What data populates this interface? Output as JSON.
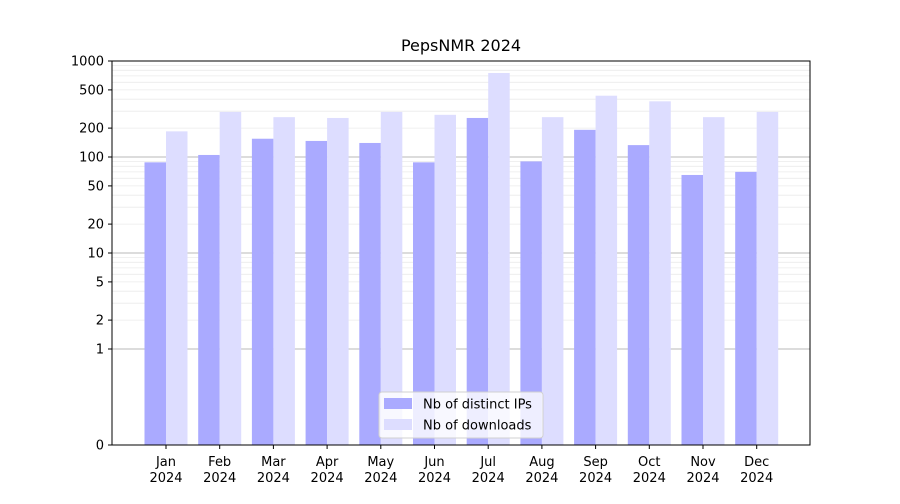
{
  "chart_data": {
    "type": "bar",
    "title": "PepsNMR 2024",
    "xlabel": "",
    "ylabel": "",
    "y_scale": "symlog",
    "ylim": [
      0,
      1000
    ],
    "y_ticks": [
      0,
      1,
      2,
      5,
      10,
      20,
      50,
      100,
      200,
      500,
      1000
    ],
    "y_tick_labels": [
      "0",
      "1",
      "2",
      "5",
      "10",
      "20",
      "50",
      "100",
      "200",
      "500",
      "1000"
    ],
    "grid": true,
    "legend_position": "bottom-center",
    "categories": [
      [
        "Jan",
        "2024"
      ],
      [
        "Feb",
        "2024"
      ],
      [
        "Mar",
        "2024"
      ],
      [
        "Apr",
        "2024"
      ],
      [
        "May",
        "2024"
      ],
      [
        "Jun",
        "2024"
      ],
      [
        "Jul",
        "2024"
      ],
      [
        "Aug",
        "2024"
      ],
      [
        "Sep",
        "2024"
      ],
      [
        "Oct",
        "2024"
      ],
      [
        "Nov",
        "2024"
      ],
      [
        "Dec",
        "2024"
      ]
    ],
    "series": [
      {
        "name": "Nb of distinct IPs",
        "color": "#aaaaff",
        "values": [
          88,
          105,
          155,
          147,
          140,
          88,
          255,
          90,
          192,
          133,
          65,
          70
        ]
      },
      {
        "name": "Nb of downloads",
        "color": "#ddddff",
        "values": [
          185,
          295,
          260,
          255,
          295,
          275,
          750,
          260,
          435,
          380,
          260,
          295
        ]
      }
    ]
  }
}
